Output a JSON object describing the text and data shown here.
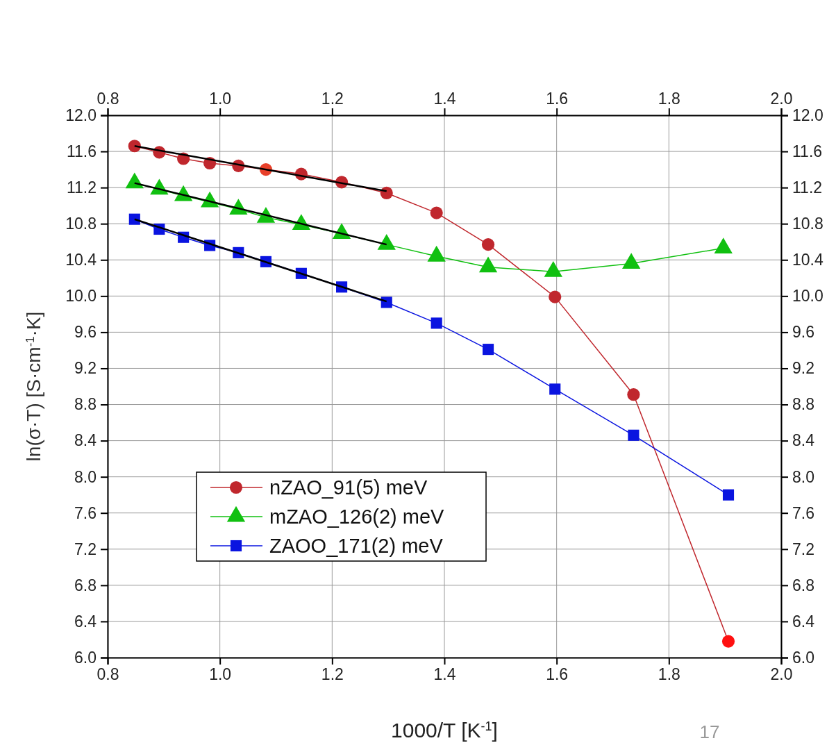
{
  "chart_data": {
    "type": "line",
    "xlabel": "1000/T [K$^{-1}$]",
    "ylabel": "ln(σ·T) [S·cm$^{-1}$·K]",
    "xlim": [
      0.8,
      2.0
    ],
    "xticks": [
      {
        "value": 0.8,
        "label": "0.8"
      },
      {
        "value": 1.0,
        "label": "1.0"
      },
      {
        "value": 1.2,
        "label": "1.2"
      },
      {
        "value": 1.4,
        "label": "1.4"
      },
      {
        "value": 1.6,
        "label": "1.6"
      },
      {
        "value": 1.8,
        "label": "1.8"
      },
      {
        "value": 2.0,
        "label": "2.0"
      }
    ],
    "x2lim": [
      0.8,
      2.0
    ],
    "x2ticks": [
      {
        "value": 0.8,
        "label": "0.8"
      },
      {
        "value": 1.0,
        "label": "1.0"
      },
      {
        "value": 1.2,
        "label": "1.2"
      },
      {
        "value": 1.4,
        "label": "1.4"
      },
      {
        "value": 1.6,
        "label": "1.6"
      },
      {
        "value": 1.8,
        "label": "1.8"
      },
      {
        "value": 2.0,
        "label": "2.0"
      }
    ],
    "ylim": [
      6.0,
      12.0
    ],
    "yticks": [
      {
        "value": 6,
        "label": "6.0"
      },
      6.4,
      6.8,
      7.2,
      7.6,
      {
        "value": 8,
        "label": "8.0"
      },
      8.4,
      8.8,
      9.2,
      9.6,
      {
        "value": 10,
        "label": "10.0"
      },
      10.4,
      10.8,
      11.2,
      11.6,
      {
        "value": 12,
        "label": "12.0"
      }
    ],
    "y2lim": [
      6.0,
      12.0
    ],
    "y2ticks": [
      {
        "value": 6,
        "label": "6.0"
      },
      6.4,
      6.8,
      7.2,
      7.6,
      {
        "value": 8,
        "label": "8.0"
      },
      8.4,
      8.8,
      9.2,
      9.6,
      {
        "value": 10,
        "label": "10.0"
      },
      10.4,
      10.8,
      11.2,
      11.6,
      {
        "value": 12,
        "label": "12.0"
      }
    ],
    "grid": true,
    "legend": "bottom left",
    "line_style": "solid",
    "annotations": [
      "17"
    ],
    "series": [
      {
        "name": "nZAO_91(5) meV",
        "color": "#c0272d",
        "marker": "circle",
        "x": [
          0.848,
          0.892,
          0.935,
          0.982,
          1.033,
          1.082,
          1.145,
          1.217,
          1.297,
          1.386,
          1.478,
          1.597,
          1.737,
          1.906
        ],
        "values": [
          11.66,
          11.59,
          11.52,
          11.47,
          11.44,
          11.4,
          11.35,
          11.26,
          11.14,
          10.92,
          10.57,
          9.99,
          8.91,
          6.18
        ],
        "colors": [
          "#c0272d",
          "#c0272d",
          "#c0272d",
          "#c0272d",
          "#c0272d",
          "#e8402a",
          "#c0272d",
          "#c0272d",
          "#c0272d",
          "#c0272d",
          "#c0272d",
          "#c0272d",
          "#c0272d",
          "#ff1010"
        ]
      },
      {
        "name": "mZAO_126(2) meV",
        "color": "#10c010",
        "marker": "triangle",
        "x": [
          0.848,
          0.892,
          0.935,
          0.982,
          1.033,
          1.082,
          1.145,
          1.217,
          1.297,
          1.386,
          1.478,
          1.594,
          1.733,
          1.897
        ],
        "values": [
          11.25,
          11.18,
          11.11,
          11.04,
          10.96,
          10.87,
          10.79,
          10.69,
          10.57,
          10.44,
          10.32,
          10.27,
          10.36,
          10.53
        ]
      },
      {
        "name": "ZAOO_171(2) meV",
        "color": "#0a14e0",
        "marker": "square",
        "x": [
          0.848,
          0.892,
          0.935,
          0.982,
          1.033,
          1.082,
          1.145,
          1.217,
          1.297,
          1.386,
          1.478,
          1.597,
          1.737,
          1.906
        ],
        "values": [
          10.85,
          10.74,
          10.65,
          10.56,
          10.48,
          10.38,
          10.25,
          10.1,
          9.93,
          9.7,
          9.41,
          8.97,
          8.46,
          7.8
        ]
      },
      {
        "type": "line",
        "color": "#000000",
        "marker": "none",
        "x": [
          0.848,
          1.297
        ],
        "values": [
          11.66,
          11.16
        ]
      },
      {
        "type": "line",
        "color": "#000000",
        "marker": "none",
        "x": [
          0.848,
          1.297
        ],
        "values": [
          11.25,
          10.57
        ]
      },
      {
        "type": "line",
        "color": "#000000",
        "marker": "none",
        "x": [
          0.848,
          1.297
        ],
        "values": [
          10.85,
          9.94
        ]
      }
    ]
  }
}
